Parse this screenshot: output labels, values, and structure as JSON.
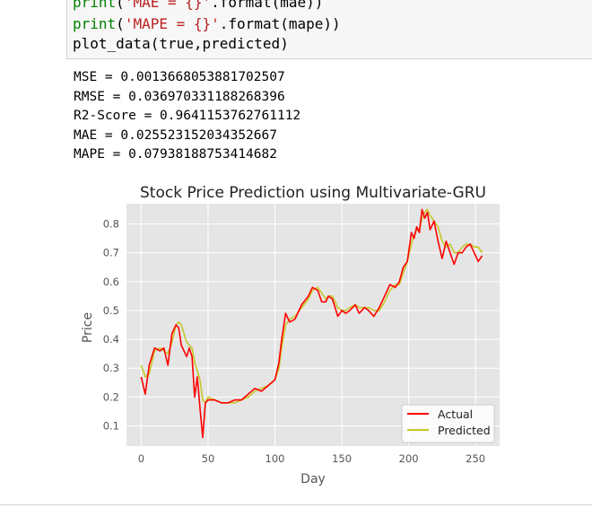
{
  "code": {
    "line1": {
      "fn": "print",
      "open": "(",
      "str": "'MAE = {}'",
      "rest": ".format(mae))"
    },
    "line2": {
      "fn": "print",
      "open": "(",
      "str": "'MAPE = {}'",
      "rest": ".format(mape))"
    },
    "line3": "plot_data(true,predicted)"
  },
  "output": {
    "lines": [
      "MSE = 0.0013668053881702507",
      "RMSE = 0.036970331188268396",
      "R2-Score = 0.9641153762761112",
      "MAE = 0.025523152034352667",
      "MAPE = 0.07938188753414682"
    ]
  },
  "chart_data": {
    "type": "line",
    "title": "Stock Price Prediction using Multivariate-GRU",
    "xlabel": "Day",
    "ylabel": "Price",
    "xlim": [
      -11,
      268
    ],
    "ylim": [
      0.03,
      0.87
    ],
    "xticks": [
      "0",
      "50",
      "100",
      "150",
      "200",
      "250"
    ],
    "yticks": [
      "0.1",
      "0.2",
      "0.3",
      "0.4",
      "0.5",
      "0.6",
      "0.7",
      "0.8"
    ],
    "grid": true,
    "legend_position": "lower right",
    "series": [
      {
        "name": "Actual",
        "color": "#ff0000",
        "x": [
          0,
          3,
          6,
          10,
          14,
          17,
          20,
          23,
          26,
          28,
          30,
          32,
          34,
          36,
          38,
          40,
          42,
          44,
          46,
          48,
          50,
          55,
          60,
          65,
          70,
          75,
          80,
          85,
          90,
          95,
          100,
          103,
          105,
          108,
          111,
          115,
          120,
          125,
          128,
          132,
          135,
          138,
          140,
          143,
          147,
          150,
          153,
          156,
          160,
          163,
          167,
          170,
          174,
          178,
          182,
          186,
          190,
          193,
          196,
          199,
          202,
          204,
          206,
          208,
          210,
          212,
          214,
          216,
          219,
          222,
          225,
          228,
          231,
          234,
          237,
          240,
          243,
          246,
          249,
          252,
          255
        ],
        "values": [
          0.27,
          0.21,
          0.31,
          0.37,
          0.36,
          0.37,
          0.31,
          0.42,
          0.45,
          0.44,
          0.38,
          0.36,
          0.34,
          0.37,
          0.34,
          0.2,
          0.27,
          0.16,
          0.06,
          0.18,
          0.19,
          0.19,
          0.18,
          0.18,
          0.19,
          0.19,
          0.21,
          0.23,
          0.22,
          0.24,
          0.26,
          0.32,
          0.4,
          0.49,
          0.46,
          0.47,
          0.52,
          0.55,
          0.58,
          0.57,
          0.53,
          0.53,
          0.55,
          0.54,
          0.48,
          0.5,
          0.49,
          0.5,
          0.52,
          0.49,
          0.51,
          0.5,
          0.48,
          0.51,
          0.55,
          0.59,
          0.58,
          0.6,
          0.65,
          0.67,
          0.77,
          0.75,
          0.79,
          0.77,
          0.85,
          0.82,
          0.84,
          0.78,
          0.81,
          0.74,
          0.68,
          0.74,
          0.7,
          0.66,
          0.7,
          0.7,
          0.72,
          0.73,
          0.7,
          0.67,
          0.69
        ]
      },
      {
        "name": "Predicted",
        "color": "#c7c728",
        "x": [
          0,
          3,
          6,
          10,
          14,
          17,
          20,
          23,
          26,
          28,
          30,
          32,
          34,
          36,
          38,
          40,
          42,
          44,
          46,
          48,
          50,
          55,
          60,
          65,
          70,
          75,
          80,
          85,
          90,
          95,
          100,
          103,
          105,
          108,
          111,
          115,
          120,
          125,
          128,
          132,
          135,
          138,
          140,
          143,
          147,
          150,
          153,
          156,
          160,
          163,
          167,
          170,
          174,
          178,
          182,
          186,
          190,
          193,
          196,
          199,
          202,
          204,
          206,
          208,
          210,
          212,
          214,
          216,
          219,
          222,
          225,
          228,
          231,
          234,
          237,
          240,
          243,
          246,
          249,
          252,
          255
        ],
        "values": [
          0.31,
          0.27,
          0.28,
          0.36,
          0.37,
          0.36,
          0.35,
          0.39,
          0.45,
          0.46,
          0.45,
          0.42,
          0.39,
          0.38,
          0.37,
          0.32,
          0.29,
          0.26,
          0.19,
          0.18,
          0.2,
          0.19,
          0.18,
          0.18,
          0.18,
          0.19,
          0.2,
          0.22,
          0.23,
          0.24,
          0.26,
          0.3,
          0.37,
          0.45,
          0.47,
          0.48,
          0.51,
          0.54,
          0.57,
          0.58,
          0.56,
          0.54,
          0.55,
          0.55,
          0.51,
          0.5,
          0.5,
          0.51,
          0.52,
          0.51,
          0.51,
          0.51,
          0.5,
          0.5,
          0.53,
          0.57,
          0.59,
          0.59,
          0.63,
          0.67,
          0.73,
          0.76,
          0.78,
          0.78,
          0.82,
          0.84,
          0.85,
          0.83,
          0.81,
          0.79,
          0.74,
          0.72,
          0.73,
          0.7,
          0.7,
          0.72,
          0.73,
          0.73,
          0.72,
          0.72,
          0.7
        ]
      }
    ]
  }
}
